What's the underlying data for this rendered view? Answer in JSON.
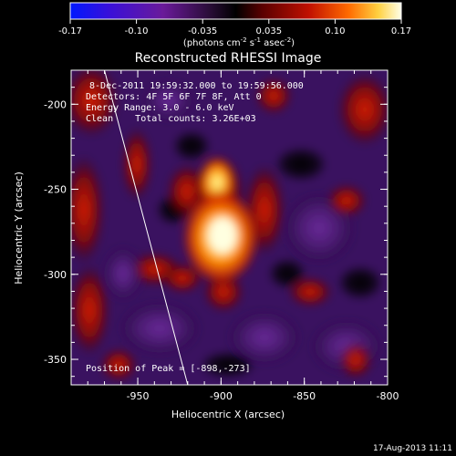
{
  "colorbar": {
    "ticks": [
      "-0.17",
      "-0.10",
      "-0.035",
      "0.035",
      "0.10",
      "0.17"
    ],
    "unit_parts": [
      "(photons cm",
      "-2",
      " s",
      "-1",
      " asec",
      "-2",
      ")"
    ]
  },
  "chart_data": {
    "type": "heatmap",
    "title": "Reconstructed RHESSI Image",
    "xlabel": "Heliocentric X (arcsec)",
    "ylabel": "Heliocentric Y (arcsec)",
    "xlim": [
      -990,
      -800
    ],
    "ylim": [
      -365,
      -180
    ],
    "x_ticks": [
      -950,
      -900,
      -850,
      -800
    ],
    "x_tick_labels": [
      "-950",
      "-900",
      "-850",
      "-800"
    ],
    "y_ticks": [
      -200,
      -250,
      -300,
      -350
    ],
    "y_tick_labels": [
      "-200",
      "-250",
      "-300",
      "-350"
    ],
    "color_range": [
      -0.17,
      0.17
    ],
    "peak": [
      -898,
      -273
    ],
    "limb_line": [
      [
        -970,
        -180
      ],
      [
        -920,
        -365
      ]
    ],
    "info_lines": [
      " 8-Dec-2011 19:59:32.000 to 19:59:56.000",
      "Detectors: 4F 5F 6F 7F 8F, Att 0",
      "Energy Range: 3.0 - 6.0 keV",
      "Clean    Total counts: 3.26E+03"
    ],
    "peak_label": "Position of Peak = [-898,-273]",
    "grid": false
  },
  "footer": {
    "timestamp": "17-Aug-2013 11:11"
  }
}
